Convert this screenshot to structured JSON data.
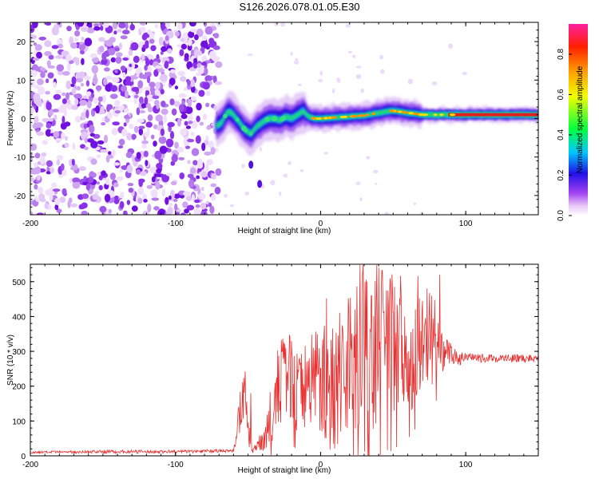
{
  "title": "S126.2026.078.01.05.E30",
  "colors": {
    "signal": "#e83030",
    "axis": "#000000",
    "background": "#ffffff"
  },
  "chart_data": [
    {
      "type": "heatmap",
      "name": "spectrogram",
      "xlabel": "Height of straight line (km)",
      "ylabel": "Frequency (Hz)",
      "xlim": [
        -200,
        150
      ],
      "ylim": [
        -25,
        25
      ],
      "xticks": [
        -200,
        -100,
        0,
        100
      ],
      "xtick_labels": [
        "-200",
        "-100",
        "0",
        "100"
      ],
      "yticks": [
        -20,
        -10,
        0,
        10,
        20
      ],
      "ytick_labels": [
        "-20",
        "-10",
        "0",
        "10",
        "20"
      ],
      "noise_region_x": [
        -200,
        -70
      ],
      "centerline": [
        {
          "x": -72,
          "y": -2
        },
        {
          "x": -68,
          "y": -1
        },
        {
          "x": -64,
          "y": 2
        },
        {
          "x": -60,
          "y": 1
        },
        {
          "x": -56,
          "y": -1
        },
        {
          "x": -52,
          "y": -3
        },
        {
          "x": -48,
          "y": -4
        },
        {
          "x": -44,
          "y": -2
        },
        {
          "x": -40,
          "y": -1
        },
        {
          "x": -36,
          "y": 0
        },
        {
          "x": -32,
          "y": 0
        },
        {
          "x": -28,
          "y": -0.5
        },
        {
          "x": -24,
          "y": 0.5
        },
        {
          "x": -20,
          "y": 0
        },
        {
          "x": -16,
          "y": 1
        },
        {
          "x": -12,
          "y": 2
        },
        {
          "x": -8,
          "y": 0.5
        },
        {
          "x": -4,
          "y": 0
        },
        {
          "x": 0,
          "y": 0
        },
        {
          "x": 10,
          "y": 0.3
        },
        {
          "x": 20,
          "y": 0.5
        },
        {
          "x": 30,
          "y": 0.8
        },
        {
          "x": 40,
          "y": 1.5
        },
        {
          "x": 50,
          "y": 2
        },
        {
          "x": 60,
          "y": 1.5
        },
        {
          "x": 70,
          "y": 1
        },
        {
          "x": 80,
          "y": 1
        },
        {
          "x": 90,
          "y": 1
        },
        {
          "x": 110,
          "y": 1
        },
        {
          "x": 130,
          "y": 1
        },
        {
          "x": 150,
          "y": 1
        }
      ],
      "outliers": [
        {
          "x": -48,
          "y": -12
        },
        {
          "x": -42,
          "y": -17
        }
      ],
      "colorbar": {
        "label": "Normalized spectral amplitude",
        "range": [
          0,
          0.95
        ],
        "ticks": [
          0.0,
          0.2,
          0.4,
          0.6,
          0.8
        ],
        "tick_labels": [
          "0.0",
          "0.2",
          "0.4",
          "0.6",
          "0.8"
        ]
      }
    },
    {
      "type": "line",
      "name": "snr",
      "xlabel": "Height of straight line (km)",
      "ylabel": "SNR (10 * v/v)",
      "xlim": [
        -200,
        150
      ],
      "ylim": [
        0,
        550
      ],
      "xticks": [
        -200,
        -100,
        0,
        100
      ],
      "xtick_labels": [
        "-200",
        "-100",
        "0",
        "100"
      ],
      "yticks": [
        0,
        100,
        200,
        300,
        400,
        500
      ],
      "ytick_labels": [
        "0",
        "100",
        "200",
        "300",
        "400",
        "500"
      ],
      "series": [
        {
          "name": "SNR",
          "x": [
            -200,
            -150,
            -100,
            -60,
            -56,
            -52,
            -50,
            -46,
            -42,
            -38,
            -34,
            -30,
            -28,
            -25,
            -22,
            -20,
            -15,
            -10,
            -5,
            0,
            5,
            10,
            15,
            20,
            25,
            30,
            35,
            40,
            45,
            50,
            55,
            60,
            65,
            70,
            75,
            80,
            85,
            90,
            95,
            100,
            110,
            120,
            130,
            140,
            150
          ],
          "y": [
            10,
            12,
            12,
            15,
            120,
            180,
            60,
            20,
            35,
            60,
            100,
            160,
            220,
            320,
            250,
            200,
            180,
            210,
            240,
            230,
            200,
            210,
            250,
            300,
            320,
            380,
            300,
            330,
            340,
            320,
            320,
            300,
            300,
            310,
            300,
            300,
            300,
            290,
            280,
            280,
            280,
            280,
            280,
            280,
            280
          ],
          "amplitude": [
            3,
            5,
            5,
            5,
            60,
            70,
            40,
            15,
            25,
            45,
            70,
            90,
            100,
            110,
            120,
            120,
            120,
            130,
            150,
            160,
            180,
            200,
            220,
            240,
            250,
            260,
            250,
            240,
            230,
            220,
            200,
            180,
            160,
            140,
            120,
            100,
            60,
            30,
            20,
            15,
            12,
            12,
            12,
            12,
            12
          ],
          "peaks": [
            {
              "x": -48,
              "y": 180
            },
            {
              "x": -20,
              "y": 330
            },
            {
              "x": 35,
              "y": 460
            },
            {
              "x": 40,
              "y": 540
            },
            {
              "x": 51,
              "y": 485
            },
            {
              "x": 82,
              "y": 520
            }
          ]
        }
      ]
    }
  ]
}
